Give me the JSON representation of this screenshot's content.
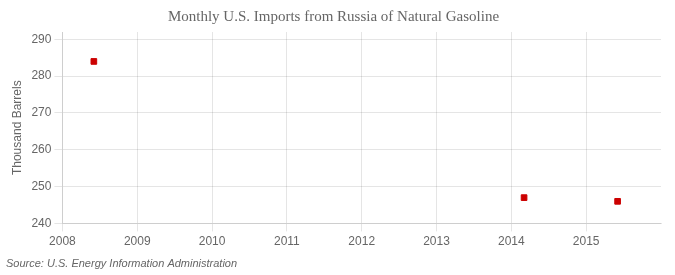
{
  "chart_data": {
    "type": "scatter",
    "title": "Monthly U.S. Imports from Russia of Natural Gasoline",
    "ylabel": "Thousand Barrels",
    "source": "Source: U.S. Energy Information Administration",
    "x": [
      2008.42,
      2014.17,
      2015.42
    ],
    "values": [
      284,
      247,
      246
    ],
    "color": "#cc0000",
    "marker": "square",
    "xlim": [
      2008,
      2016.0
    ],
    "ylim": [
      240,
      292
    ],
    "xticks": [
      2008,
      2009,
      2010,
      2011,
      2012,
      2013,
      2014,
      2015
    ],
    "yticks": [
      240,
      250,
      260,
      270,
      280,
      290
    ],
    "grid": true
  }
}
